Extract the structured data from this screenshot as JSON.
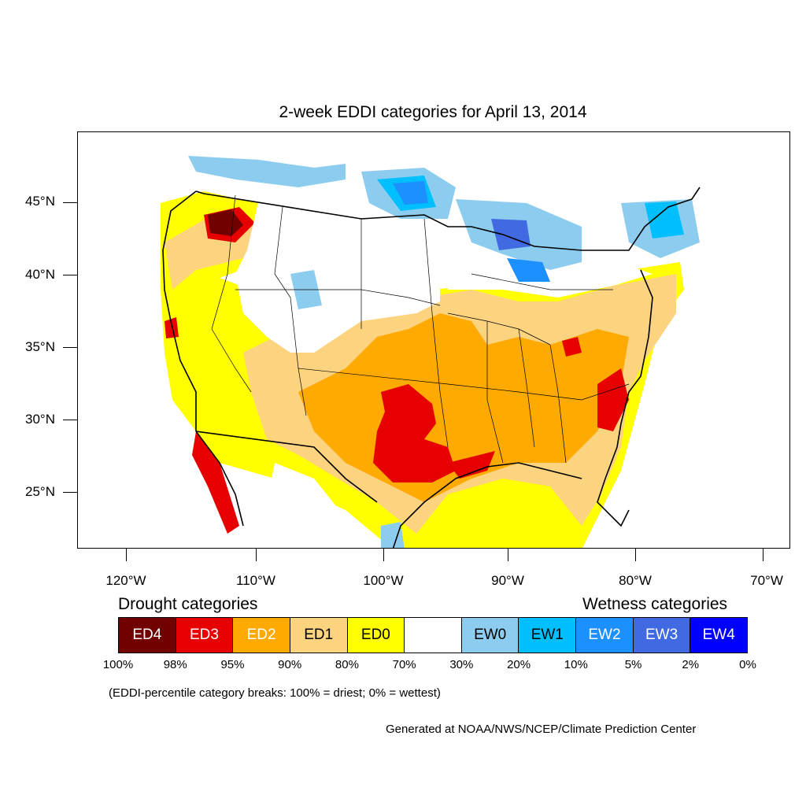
{
  "title": "2-week EDDI categories for April 13, 2014",
  "lat_labels": [
    "45°N",
    "40°N",
    "35°N",
    "30°N",
    "25°N"
  ],
  "lon_labels": [
    "120°W",
    "110°W",
    "100°W",
    "90°W",
    "80°W",
    "70°W"
  ],
  "legend": {
    "drought_heading": "Drought categories",
    "wetness_heading": "Wetness categories",
    "categories": [
      {
        "label": "ED4",
        "color": "#730000",
        "text_color": "#ffffff"
      },
      {
        "label": "ED3",
        "color": "#e60000",
        "text_color": "#ffffff"
      },
      {
        "label": "ED2",
        "color": "#ffaa00",
        "text_color": "#ffffff"
      },
      {
        "label": "ED1",
        "color": "#fcd37f",
        "text_color": "#000000"
      },
      {
        "label": "ED0",
        "color": "#ffff00",
        "text_color": "#000000"
      },
      {
        "label": "",
        "color": "#ffffff",
        "text_color": "#000000"
      },
      {
        "label": "EW0",
        "color": "#8ccdef",
        "text_color": "#000000"
      },
      {
        "label": "EW1",
        "color": "#00bfff",
        "text_color": "#000000"
      },
      {
        "label": "EW2",
        "color": "#1d90ff",
        "text_color": "#ffffff"
      },
      {
        "label": "EW3",
        "color": "#4169e1",
        "text_color": "#ffffff"
      },
      {
        "label": "EW4",
        "color": "#0000ff",
        "text_color": "#ffffff"
      }
    ],
    "breaks": [
      "100%",
      "98%",
      "95%",
      "90%",
      "80%",
      "70%",
      "30%",
      "20%",
      "10%",
      "5%",
      "2%",
      "0%"
    ]
  },
  "note": "(EDDI-percentile category breaks: 100% = driest; 0% = wettest)",
  "credit": "Generated at NOAA/NWS/NCEP/Climate Prediction Center"
}
